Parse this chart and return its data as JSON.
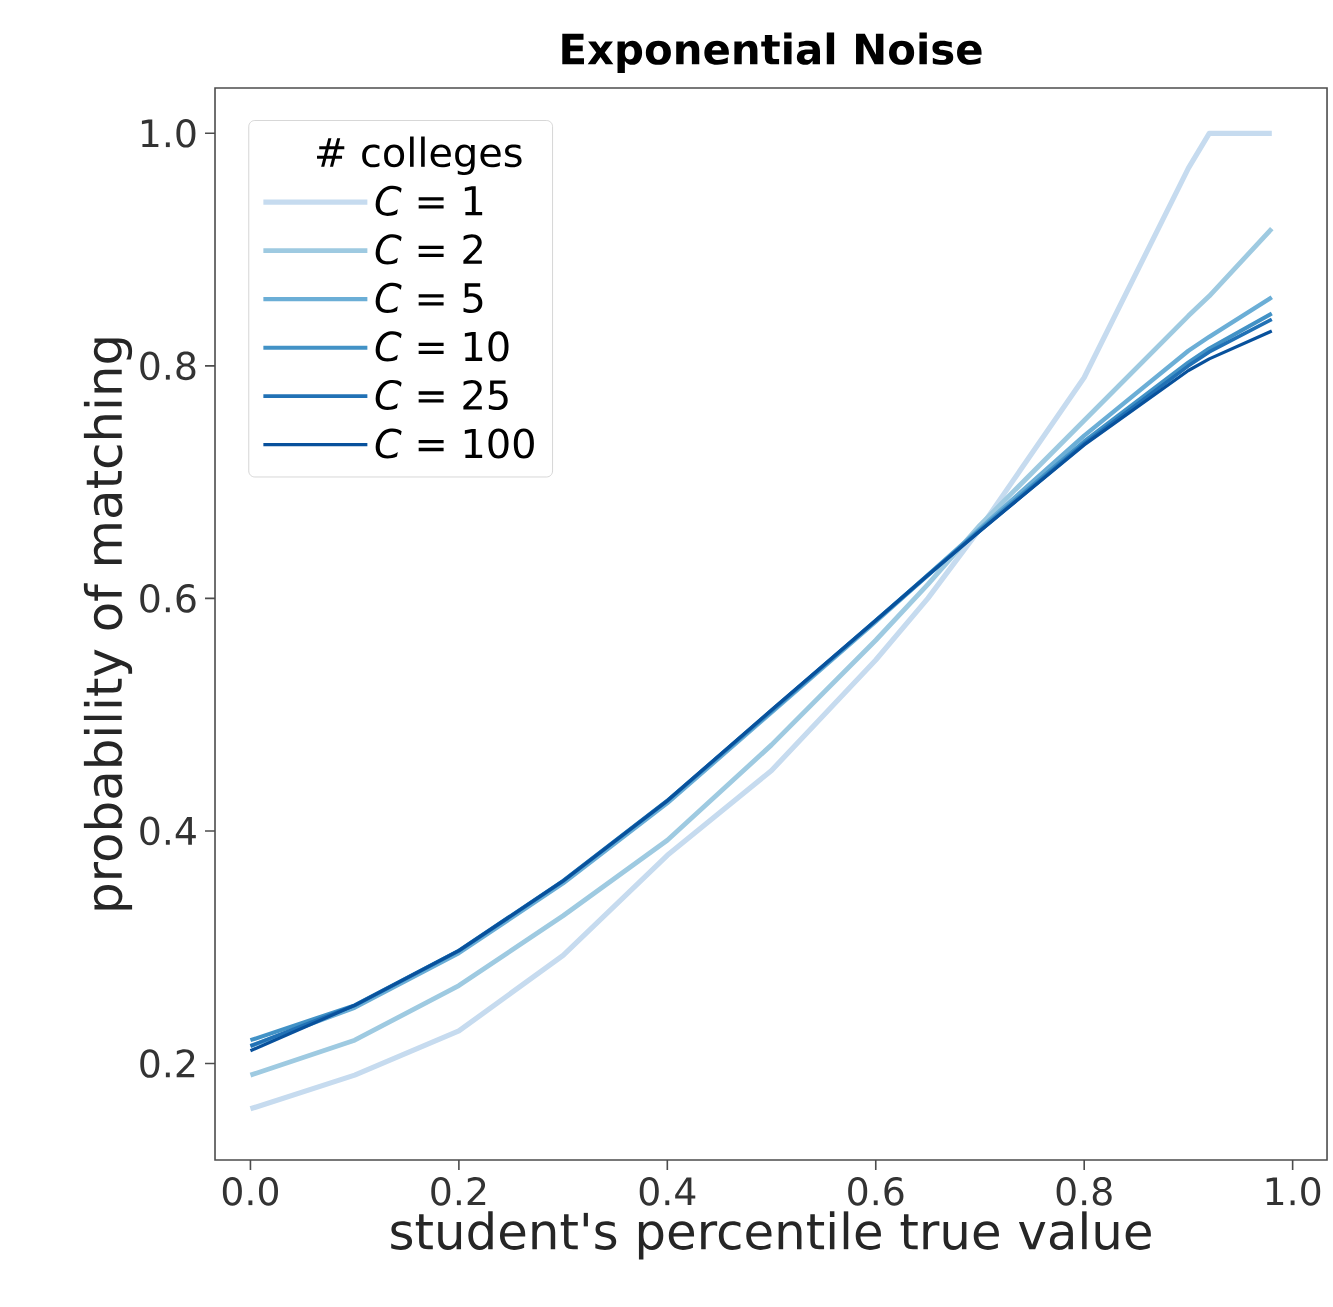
{
  "chart_data": {
    "type": "line",
    "title": "Exponential Noise",
    "xlabel": "student's percentile true value",
    "ylabel": "probability of matching",
    "legend_title": "# colleges",
    "legend": "top left",
    "line_style": "solid",
    "x": [
      0,
      0.1,
      0.2,
      0.3,
      0.4,
      0.5,
      0.6,
      0.65,
      0.7,
      0.8,
      0.9,
      0.92,
      0.98
    ],
    "xlim": [
      -0.034,
      1.033
    ],
    "ylim": [
      0.117,
      1.039
    ],
    "xticks": [
      {
        "value": 0,
        "label": "0.0"
      },
      {
        "value": 0.2,
        "label": "0.2"
      },
      {
        "value": 0.4,
        "label": "0.4"
      },
      {
        "value": 0.6,
        "label": "0.6"
      },
      {
        "value": 0.8,
        "label": "0.8"
      },
      {
        "value": 1,
        "label": "1.0"
      }
    ],
    "yticks": [
      {
        "value": 0.2,
        "label": "0.2"
      },
      {
        "value": 0.4,
        "label": "0.4"
      },
      {
        "value": 0.6,
        "label": "0.6"
      },
      {
        "value": 0.8,
        "label": "0.8"
      },
      {
        "value": 1,
        "label": "1.0"
      }
    ],
    "series": [
      {
        "name": "*C* = 1",
        "color": "#c6dbef",
        "values": [
          0.161,
          0.19,
          0.228,
          0.293,
          0.379,
          0.452,
          0.547,
          0.6,
          0.66,
          0.79,
          0.97,
          1.0,
          1.0
        ]
      },
      {
        "name": "*C* = 2",
        "color": "#9ecae1",
        "values": [
          0.19,
          0.22,
          0.267,
          0.327,
          0.392,
          0.474,
          0.564,
          0.612,
          0.663,
          0.753,
          0.843,
          0.86,
          0.918
        ]
      },
      {
        "name": "*C* = 5",
        "color": "#6baed6",
        "values": [
          0.215,
          0.248,
          0.295,
          0.355,
          0.424,
          0.502,
          0.58,
          0.62,
          0.66,
          0.74,
          0.813,
          0.825,
          0.859
        ]
      },
      {
        "name": "*C* = 10",
        "color": "#4292c6",
        "values": [
          0.22,
          0.25,
          0.297,
          0.357,
          0.426,
          0.503,
          0.581,
          0.62,
          0.659,
          0.735,
          0.803,
          0.815,
          0.845
        ]
      },
      {
        "name": "*C* = 25",
        "color": "#2171b5",
        "values": [
          0.215,
          0.25,
          0.297,
          0.357,
          0.426,
          0.504,
          0.581,
          0.62,
          0.658,
          0.733,
          0.8,
          0.812,
          0.84
        ]
      },
      {
        "name": "*C* = 100",
        "color": "#08519c",
        "values": [
          0.211,
          0.25,
          0.297,
          0.357,
          0.426,
          0.504,
          0.581,
          0.62,
          0.658,
          0.732,
          0.796,
          0.806,
          0.83
        ]
      }
    ]
  }
}
